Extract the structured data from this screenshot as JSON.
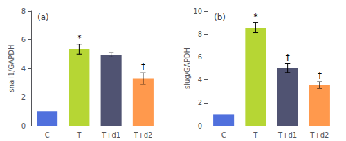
{
  "chart_data": [
    {
      "type": "bar",
      "title": "(a)",
      "ylabel": "snail1/GAPDH",
      "categories": [
        "C",
        "T",
        "T+d1",
        "T+d2"
      ],
      "values": [
        1.0,
        5.35,
        4.95,
        3.3
      ],
      "errors": [
        0.0,
        0.35,
        0.15,
        0.4
      ],
      "ylim": [
        0,
        8
      ],
      "yticks": [
        0,
        2,
        4,
        6,
        8
      ],
      "grid": false,
      "annotations": [
        {
          "x": "T",
          "text": "*"
        },
        {
          "x": "T+d2",
          "text": "†"
        }
      ]
    },
    {
      "type": "bar",
      "title": "(b)",
      "ylabel": "slug/GAPDH",
      "categories": [
        "C",
        "T",
        "T+d1",
        "T+d2"
      ],
      "values": [
        1.0,
        8.55,
        5.05,
        3.55
      ],
      "errors": [
        0.0,
        0.45,
        0.4,
        0.3
      ],
      "ylim": [
        0,
        10
      ],
      "yticks": [
        0,
        2,
        4,
        6,
        8,
        10
      ],
      "grid": false,
      "annotations": [
        {
          "x": "T",
          "text": "*"
        },
        {
          "x": "T+d1",
          "text": "†"
        },
        {
          "x": "T+d2",
          "text": "†"
        }
      ]
    }
  ]
}
